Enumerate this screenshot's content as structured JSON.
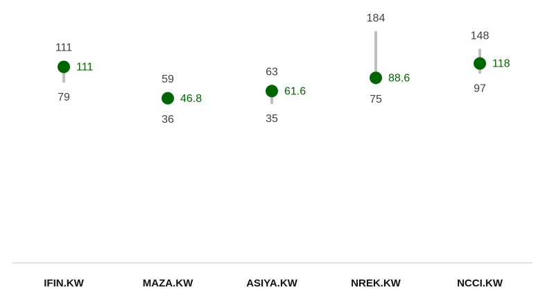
{
  "chart_data": {
    "type": "range-dot",
    "categories": [
      "IFIN.KW",
      "MAZA.KW",
      "ASIYA.KW",
      "NREK.KW",
      "NCCI.KW"
    ],
    "high": [
      111,
      59,
      63,
      184,
      148
    ],
    "low": [
      79,
      36,
      35,
      75,
      97
    ],
    "values": [
      111,
      46.8,
      61.6,
      88.6,
      118
    ],
    "color": "#006400",
    "range_color": "#c0c0c0"
  }
}
